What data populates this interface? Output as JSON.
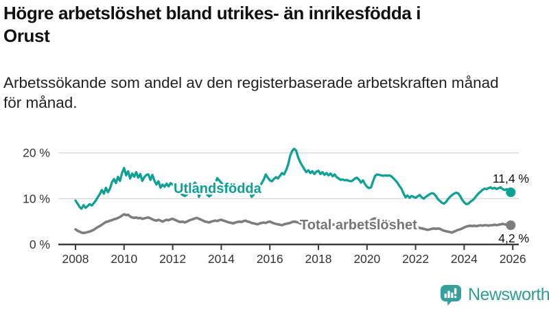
{
  "header": {
    "title_line1": "Högre arbetslöshet bland utrikes- än inrikesfödda i",
    "title_line2": "Orust",
    "subtitle_line1": "Arbetssökande som andel av den registerbaserade arbetskraften månad",
    "subtitle_line2": "för månad."
  },
  "chart_data": {
    "type": "line",
    "title": "Högre arbetslöshet bland utrikes- än inrikesfödda i Orust",
    "subtitle": "Arbetssökande som andel av den registerbaserade arbetskraften månad för månad.",
    "unit": "%",
    "frequency": "monthly",
    "start_year": 2008,
    "end_label_year": 2026,
    "x_ticks": [
      "2008",
      "2010",
      "2012",
      "2014",
      "2016",
      "2018",
      "2020",
      "2022",
      "2024",
      "2026"
    ],
    "y_ticks": [
      {
        "value": 0,
        "label": "0 %"
      },
      {
        "value": 10,
        "label": "10 %"
      },
      {
        "value": 20,
        "label": "20 %"
      }
    ],
    "ylim": [
      0,
      22
    ],
    "gridlines_pct": [
      10,
      20
    ],
    "grid_on": true,
    "legend_position": "inline-labels",
    "colors": {
      "foreign_born_line": "#0BA195",
      "total_line": "#7D7D7D",
      "gridline": "#D9D9D9",
      "axis": "#3C3C3C",
      "tick_text": "#333333",
      "value_text": "#111111"
    },
    "series": [
      {
        "name": "Utlandsfödda",
        "color": "#0BA195",
        "end_value": 11.4,
        "end_label": "11,4 %",
        "values": [
          9.6,
          8.9,
          8.2,
          7.8,
          8.6,
          8.0,
          8.4,
          8.8,
          8.5,
          9.0,
          9.6,
          10.3,
          11.0,
          11.9,
          11.1,
          12.4,
          11.4,
          12.2,
          13.6,
          14.3,
          13.4,
          14.8,
          13.9,
          15.6,
          16.7,
          15.1,
          16.0,
          14.4,
          15.5,
          14.8,
          15.8,
          14.6,
          15.4,
          13.9,
          14.7,
          15.2,
          15.3,
          14.1,
          15.2,
          13.9,
          13.1,
          13.8,
          12.4,
          13.1,
          12.6,
          13.3,
          12.7,
          13.4,
          13.1,
          12.6,
          12.1,
          11.6,
          11.1,
          10.8,
          10.6,
          10.9,
          11.5,
          12.1,
          12.9,
          13.5,
          12.8,
          10.4,
          11.6,
          12.0,
          11.3,
          10.9,
          10.5,
          10.8,
          11.9,
          13.2,
          14.5,
          14.0,
          13.5,
          13.0,
          12.5,
          12.0,
          11.6,
          11.3,
          11.1,
          11.4,
          11.8,
          12.3,
          12.8,
          13.3,
          13.0,
          12.4,
          11.7,
          10.4,
          10.9,
          11.4,
          12.0,
          12.7,
          13.4,
          14.2,
          15.3,
          14.6,
          14.0,
          13.8,
          14.3,
          14.7,
          14.4,
          15.0,
          15.6,
          15.3,
          16.2,
          17.4,
          19.3,
          20.4,
          20.9,
          20.5,
          19.0,
          18.0,
          17.2,
          16.5,
          15.8,
          16.2,
          15.6,
          16.0,
          15.4,
          15.9,
          16.1,
          15.4,
          15.8,
          15.2,
          15.6,
          15.1,
          15.5,
          14.9,
          15.3,
          14.7,
          14.4,
          14.1,
          14.2,
          14.0,
          14.1,
          13.9,
          13.8,
          14.0,
          14.4,
          14.6,
          14.2,
          13.5,
          14.0,
          13.2,
          12.6,
          12.3,
          12.5,
          13.8,
          15.0,
          15.3,
          15.2,
          15.1,
          15.0,
          15.1,
          15.0,
          15.1,
          14.9,
          14.5,
          14.0,
          13.5,
          12.8,
          12.2,
          11.2,
          10.3,
          10.7,
          10.2,
          10.6,
          10.4,
          10.2,
          10.5,
          10.8,
          10.3,
          10.0,
          10.4,
          10.7,
          11.0,
          11.2,
          11.1,
          10.6,
          9.9,
          9.5,
          9.1,
          8.9,
          9.3,
          9.9,
          10.4,
          10.8,
          11.1,
          11.3,
          11.2,
          10.6,
          9.8,
          9.2,
          8.8,
          8.9,
          9.3,
          9.6,
          10.0,
          10.6,
          11.1,
          11.5,
          11.9,
          12.2,
          12.1,
          12.3,
          12.5,
          12.2,
          12.4,
          12.1,
          12.3,
          12.5,
          12.1,
          11.9,
          12.1,
          11.7,
          11.4
        ]
      },
      {
        "name": "Total arbetslöshet",
        "color": "#7D7D7D",
        "end_value": 4.2,
        "end_label": "4,2 %",
        "values": [
          3.3,
          3.0,
          2.8,
          2.6,
          2.5,
          2.6,
          2.7,
          2.8,
          3.0,
          3.2,
          3.5,
          3.8,
          4.0,
          4.3,
          4.6,
          4.9,
          5.0,
          5.2,
          5.3,
          5.5,
          5.6,
          5.8,
          6.0,
          6.3,
          6.6,
          6.4,
          6.5,
          6.1,
          5.9,
          5.8,
          5.9,
          5.7,
          5.8,
          5.6,
          5.7,
          5.8,
          5.9,
          5.7,
          5.5,
          5.3,
          5.2,
          5.4,
          5.2,
          5.0,
          5.2,
          5.4,
          5.3,
          5.5,
          5.6,
          5.4,
          5.2,
          5.0,
          4.9,
          5.0,
          4.8,
          5.0,
          5.2,
          5.4,
          5.5,
          5.7,
          5.8,
          5.6,
          5.4,
          5.2,
          5.0,
          4.9,
          4.8,
          5.0,
          5.1,
          5.2,
          5.1,
          5.3,
          5.4,
          5.2,
          5.1,
          4.9,
          4.8,
          4.7,
          4.6,
          4.8,
          4.9,
          5.0,
          4.9,
          5.1,
          5.2,
          5.0,
          4.9,
          4.7,
          4.6,
          4.5,
          4.4,
          4.6,
          4.7,
          4.8,
          4.7,
          4.9,
          5.0,
          4.8,
          4.6,
          4.5,
          4.4,
          4.3,
          4.2,
          4.4,
          4.5,
          4.6,
          4.7,
          4.9,
          5.0,
          4.9,
          4.8,
          4.6,
          4.5,
          4.4,
          4.3,
          4.5,
          4.6,
          4.7,
          4.6,
          4.8,
          4.8,
          4.7,
          4.6,
          4.4,
          4.3,
          4.2,
          4.1,
          4.3,
          4.4,
          4.5,
          4.4,
          4.6,
          4.6,
          4.5,
          4.4,
          4.3,
          4.2,
          4.1,
          4.0,
          4.2,
          4.3,
          4.4,
          4.4,
          4.6,
          4.8,
          4.9,
          5.3,
          5.6,
          5.7,
          5.6,
          5.5,
          5.4,
          5.3,
          5.2,
          5.1,
          5.0,
          5.0,
          4.9,
          4.8,
          4.6,
          4.4,
          4.2,
          4.0,
          3.9,
          3.8,
          3.7,
          3.6,
          3.6,
          3.8,
          3.7,
          3.6,
          3.5,
          3.4,
          3.3,
          3.2,
          3.3,
          3.4,
          3.5,
          3.4,
          3.5,
          3.4,
          3.2,
          3.0,
          2.9,
          2.8,
          2.7,
          2.6,
          2.8,
          3.0,
          3.2,
          3.3,
          3.5,
          3.7,
          3.9,
          4.0,
          4.1,
          4.0,
          4.1,
          4.0,
          4.1,
          4.2,
          4.1,
          4.2,
          4.2,
          4.1,
          4.2,
          4.2,
          4.3,
          4.2,
          4.3,
          4.4,
          4.5,
          4.4,
          4.3,
          4.2,
          4.2
        ]
      }
    ]
  },
  "footer": {
    "brand": "Newsworthy",
    "brand_color": "#2F9D98",
    "icon": "newsworthy-chart-bubble-icon",
    "icon_color": "#35A09B"
  }
}
